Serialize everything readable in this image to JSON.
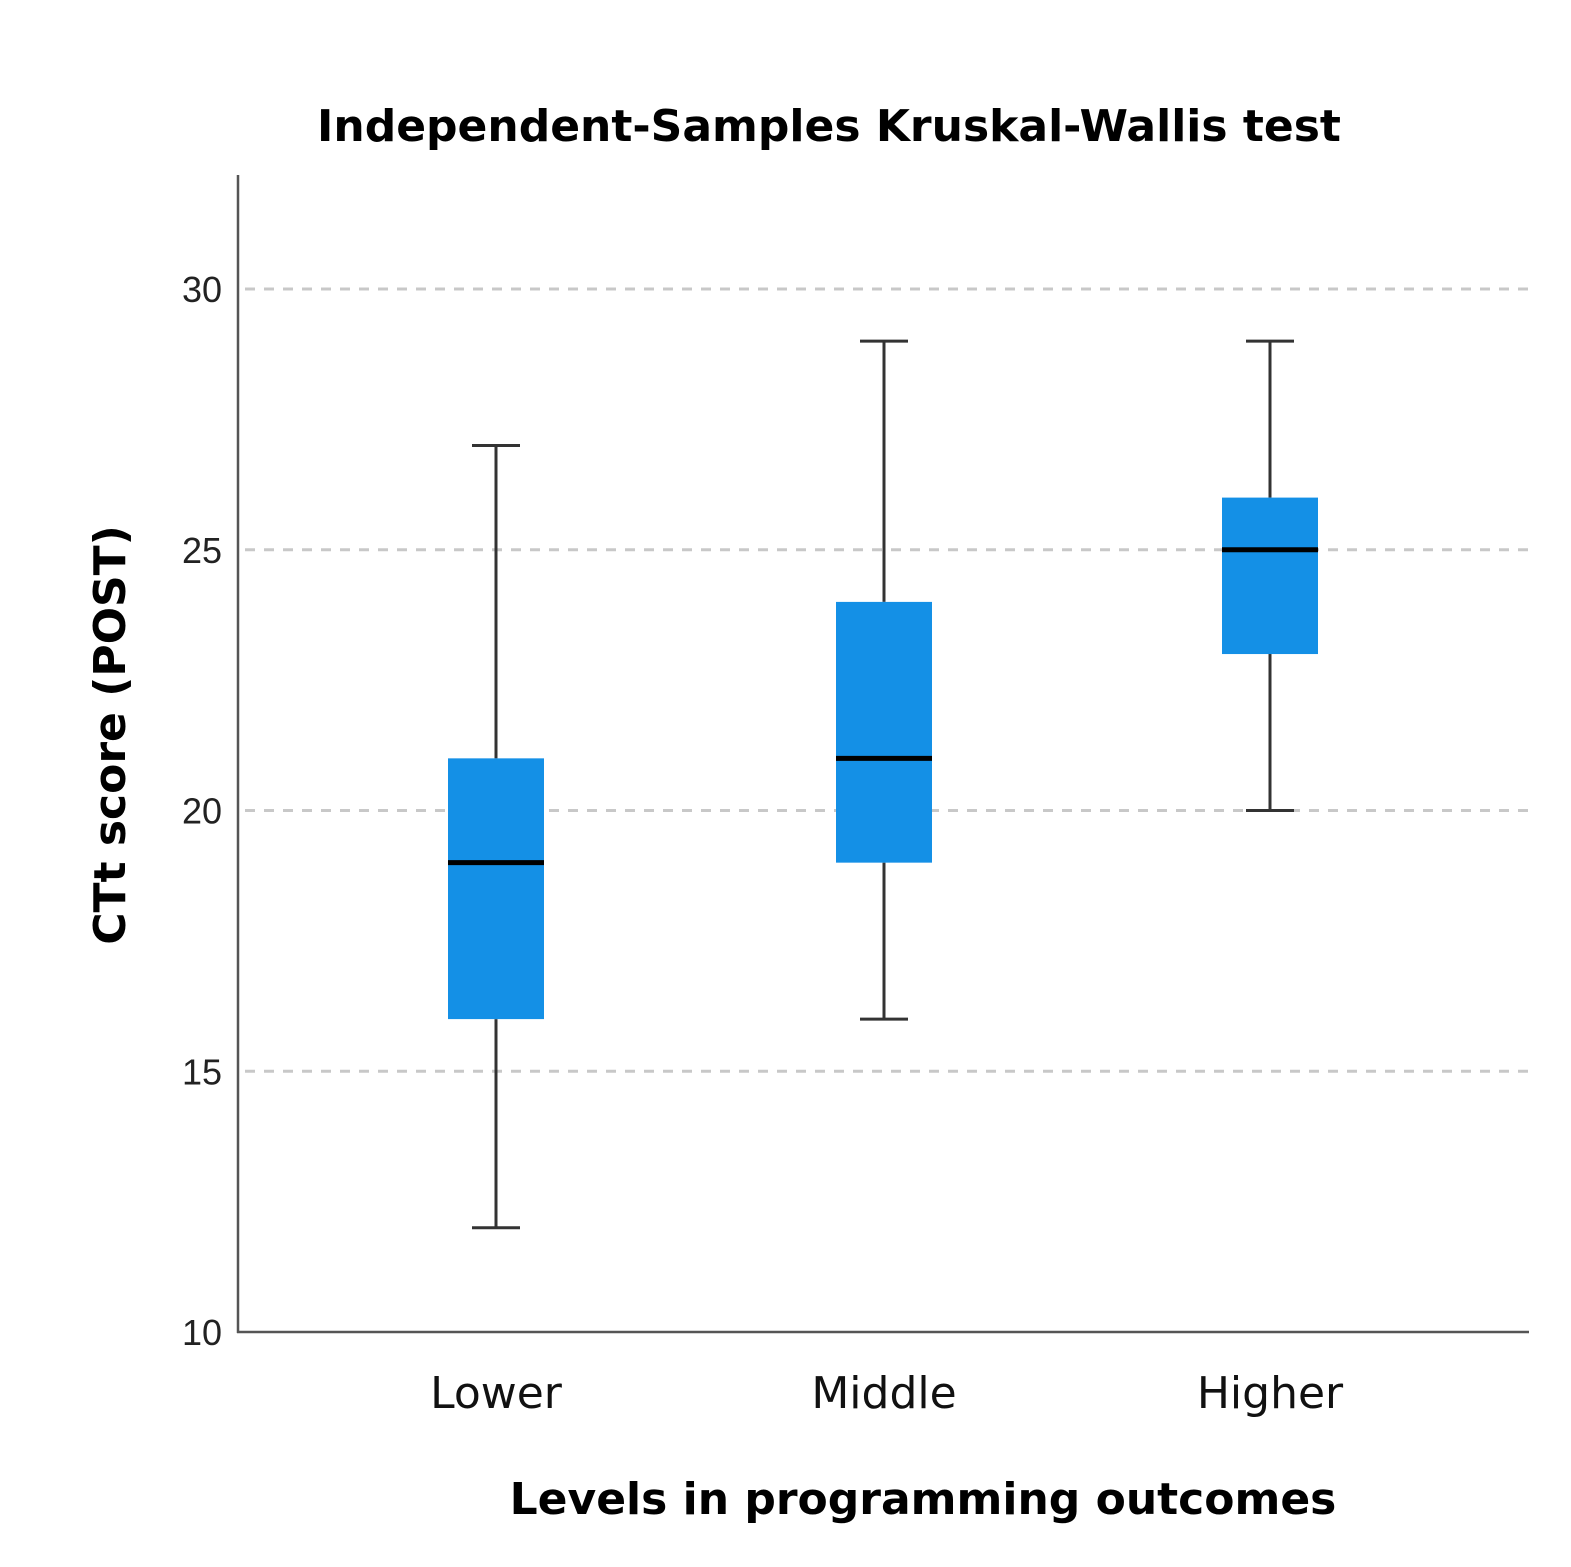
{
  "chart_data": {
    "type": "box",
    "title": "Independent-Samples Kruskal-Wallis test",
    "xlabel": "Levels in programming outcomes",
    "ylabel": "CTt score (POST)",
    "ylim": [
      10,
      32.2
    ],
    "yticks": [
      10,
      15,
      20,
      25,
      30
    ],
    "grid": true,
    "categories": [
      "Lower",
      "Middle",
      "Higher"
    ],
    "boxes": [
      {
        "category": "Lower",
        "min": 12,
        "q1": 16,
        "median": 19,
        "q3": 21,
        "max": 27
      },
      {
        "category": "Middle",
        "min": 16,
        "q1": 19,
        "median": 21,
        "q3": 24,
        "max": 29
      },
      {
        "category": "Higher",
        "min": 20,
        "q1": 23,
        "median": 25,
        "q3": 26,
        "max": 29
      }
    ],
    "box_color": "#1490e6"
  }
}
